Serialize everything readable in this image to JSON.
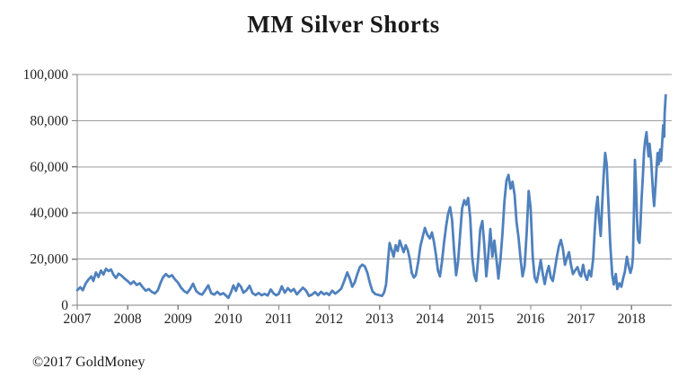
{
  "title": "MM Silver Shorts",
  "footer": {
    "copyright": "©2017 GoldMoney"
  },
  "colors": {
    "line": "#4F81BD",
    "gridline": "#9E9E9E",
    "axis": "#808080",
    "text": "#222222",
    "background": "#FFFFFF"
  },
  "chart_data": {
    "type": "line",
    "title": "MM Silver Shorts",
    "series_name": "MM Silver Shorts",
    "xlabel": "",
    "ylabel": "",
    "legend": "none",
    "grid": "horizontal",
    "xlim": [
      2007,
      2018.8
    ],
    "ylim": [
      0,
      100000
    ],
    "ytick_values": [
      0,
      20000,
      40000,
      60000,
      80000,
      100000
    ],
    "ytick_labels": [
      "0",
      "20,000",
      "40,000",
      "60,000",
      "80,000",
      "100,000"
    ],
    "xtick_values": [
      2007,
      2008,
      2009,
      2010,
      2011,
      2012,
      2013,
      2014,
      2015,
      2016,
      2017,
      2018
    ],
    "xtick_labels": [
      "2007",
      "2008",
      "2009",
      "2010",
      "2011",
      "2012",
      "2013",
      "2014",
      "2015",
      "2016",
      "2017",
      "2018"
    ],
    "line_color": "#4F81BD",
    "points": [
      [
        2007.0,
        6500
      ],
      [
        2007.06,
        7800
      ],
      [
        2007.11,
        6500
      ],
      [
        2007.17,
        9500
      ],
      [
        2007.22,
        11000
      ],
      [
        2007.28,
        12500
      ],
      [
        2007.32,
        10500
      ],
      [
        2007.37,
        14200
      ],
      [
        2007.42,
        12200
      ],
      [
        2007.47,
        15000
      ],
      [
        2007.52,
        13300
      ],
      [
        2007.57,
        15800
      ],
      [
        2007.62,
        14800
      ],
      [
        2007.67,
        15500
      ],
      [
        2007.72,
        13200
      ],
      [
        2007.77,
        11800
      ],
      [
        2007.82,
        13700
      ],
      [
        2007.88,
        12800
      ],
      [
        2007.94,
        11500
      ],
      [
        2008.0,
        10500
      ],
      [
        2008.06,
        9200
      ],
      [
        2008.12,
        10300
      ],
      [
        2008.18,
        8800
      ],
      [
        2008.24,
        9500
      ],
      [
        2008.3,
        7800
      ],
      [
        2008.36,
        6300
      ],
      [
        2008.42,
        7000
      ],
      [
        2008.48,
        5800
      ],
      [
        2008.54,
        5100
      ],
      [
        2008.6,
        6500
      ],
      [
        2008.65,
        9500
      ],
      [
        2008.7,
        12000
      ],
      [
        2008.76,
        13500
      ],
      [
        2008.82,
        12300
      ],
      [
        2008.88,
        13000
      ],
      [
        2008.94,
        11200
      ],
      [
        2009.0,
        9800
      ],
      [
        2009.06,
        7600
      ],
      [
        2009.12,
        6200
      ],
      [
        2009.18,
        5300
      ],
      [
        2009.24,
        7000
      ],
      [
        2009.3,
        9300
      ],
      [
        2009.36,
        6200
      ],
      [
        2009.42,
        5000
      ],
      [
        2009.48,
        4600
      ],
      [
        2009.54,
        6500
      ],
      [
        2009.6,
        8600
      ],
      [
        2009.66,
        5200
      ],
      [
        2009.72,
        4600
      ],
      [
        2009.78,
        5800
      ],
      [
        2009.84,
        4600
      ],
      [
        2009.9,
        5200
      ],
      [
        2009.95,
        4200
      ],
      [
        2010.0,
        3200
      ],
      [
        2010.05,
        5500
      ],
      [
        2010.1,
        8600
      ],
      [
        2010.15,
        6200
      ],
      [
        2010.2,
        9300
      ],
      [
        2010.25,
        8000
      ],
      [
        2010.3,
        5400
      ],
      [
        2010.36,
        6500
      ],
      [
        2010.42,
        8400
      ],
      [
        2010.48,
        5200
      ],
      [
        2010.54,
        4400
      ],
      [
        2010.6,
        5300
      ],
      [
        2010.66,
        4300
      ],
      [
        2010.72,
        4900
      ],
      [
        2010.78,
        4200
      ],
      [
        2010.84,
        6800
      ],
      [
        2010.9,
        5000
      ],
      [
        2010.95,
        4300
      ],
      [
        2011.0,
        4900
      ],
      [
        2011.06,
        8200
      ],
      [
        2011.12,
        5400
      ],
      [
        2011.18,
        7400
      ],
      [
        2011.24,
        6000
      ],
      [
        2011.3,
        7000
      ],
      [
        2011.36,
        4700
      ],
      [
        2011.42,
        6200
      ],
      [
        2011.48,
        7600
      ],
      [
        2011.54,
        6400
      ],
      [
        2011.6,
        4000
      ],
      [
        2011.66,
        4600
      ],
      [
        2011.72,
        5700
      ],
      [
        2011.78,
        4300
      ],
      [
        2011.84,
        5800
      ],
      [
        2011.9,
        4700
      ],
      [
        2011.95,
        5300
      ],
      [
        2012.0,
        4400
      ],
      [
        2012.06,
        6300
      ],
      [
        2012.12,
        5000
      ],
      [
        2012.18,
        6000
      ],
      [
        2012.24,
        7200
      ],
      [
        2012.3,
        10500
      ],
      [
        2012.36,
        14200
      ],
      [
        2012.41,
        11500
      ],
      [
        2012.46,
        8000
      ],
      [
        2012.51,
        10000
      ],
      [
        2012.56,
        13500
      ],
      [
        2012.61,
        16500
      ],
      [
        2012.66,
        17600
      ],
      [
        2012.71,
        16800
      ],
      [
        2012.76,
        14000
      ],
      [
        2012.81,
        9500
      ],
      [
        2012.86,
        6000
      ],
      [
        2012.92,
        4800
      ],
      [
        2013.0,
        4300
      ],
      [
        2013.05,
        4000
      ],
      [
        2013.09,
        5500
      ],
      [
        2013.13,
        9000
      ],
      [
        2013.16,
        17000
      ],
      [
        2013.2,
        27000
      ],
      [
        2013.24,
        24000
      ],
      [
        2013.28,
        21000
      ],
      [
        2013.32,
        26000
      ],
      [
        2013.36,
        23500
      ],
      [
        2013.4,
        28000
      ],
      [
        2013.44,
        25500
      ],
      [
        2013.48,
        23000
      ],
      [
        2013.52,
        26000
      ],
      [
        2013.56,
        24000
      ],
      [
        2013.6,
        20000
      ],
      [
        2013.64,
        14000
      ],
      [
        2013.68,
        12000
      ],
      [
        2013.72,
        13000
      ],
      [
        2013.77,
        19000
      ],
      [
        2013.81,
        25500
      ],
      [
        2013.86,
        30000
      ],
      [
        2013.9,
        33500
      ],
      [
        2013.95,
        30500
      ],
      [
        2014.0,
        29000
      ],
      [
        2014.04,
        31500
      ],
      [
        2014.08,
        27500
      ],
      [
        2014.12,
        22000
      ],
      [
        2014.16,
        15000
      ],
      [
        2014.2,
        12500
      ],
      [
        2014.24,
        19000
      ],
      [
        2014.28,
        27000
      ],
      [
        2014.32,
        34000
      ],
      [
        2014.36,
        39500
      ],
      [
        2014.4,
        42500
      ],
      [
        2014.44,
        37000
      ],
      [
        2014.48,
        24000
      ],
      [
        2014.52,
        13000
      ],
      [
        2014.56,
        19000
      ],
      [
        2014.6,
        31000
      ],
      [
        2014.64,
        42000
      ],
      [
        2014.68,
        45500
      ],
      [
        2014.72,
        43500
      ],
      [
        2014.76,
        46500
      ],
      [
        2014.8,
        38000
      ],
      [
        2014.84,
        21000
      ],
      [
        2014.88,
        13000
      ],
      [
        2014.92,
        10500
      ],
      [
        2014.96,
        21000
      ],
      [
        2015.0,
        33000
      ],
      [
        2015.04,
        36500
      ],
      [
        2015.08,
        26000
      ],
      [
        2015.12,
        12500
      ],
      [
        2015.16,
        22000
      ],
      [
        2015.2,
        33000
      ],
      [
        2015.24,
        21000
      ],
      [
        2015.28,
        28000
      ],
      [
        2015.32,
        20000
      ],
      [
        2015.36,
        11500
      ],
      [
        2015.4,
        20000
      ],
      [
        2015.44,
        31000
      ],
      [
        2015.48,
        45000
      ],
      [
        2015.52,
        54000
      ],
      [
        2015.56,
        56500
      ],
      [
        2015.6,
        50500
      ],
      [
        2015.64,
        53500
      ],
      [
        2015.68,
        48000
      ],
      [
        2015.72,
        36000
      ],
      [
        2015.76,
        29000
      ],
      [
        2015.8,
        20000
      ],
      [
        2015.84,
        12500
      ],
      [
        2015.88,
        17000
      ],
      [
        2015.92,
        31000
      ],
      [
        2015.96,
        49500
      ],
      [
        2016.0,
        42000
      ],
      [
        2016.04,
        21000
      ],
      [
        2016.08,
        12000
      ],
      [
        2016.12,
        10000
      ],
      [
        2016.16,
        14500
      ],
      [
        2016.2,
        19500
      ],
      [
        2016.24,
        13500
      ],
      [
        2016.28,
        9200
      ],
      [
        2016.32,
        14000
      ],
      [
        2016.36,
        17000
      ],
      [
        2016.4,
        12000
      ],
      [
        2016.44,
        10500
      ],
      [
        2016.48,
        15500
      ],
      [
        2016.52,
        21000
      ],
      [
        2016.56,
        25500
      ],
      [
        2016.6,
        28300
      ],
      [
        2016.64,
        24500
      ],
      [
        2016.68,
        17500
      ],
      [
        2016.72,
        20500
      ],
      [
        2016.76,
        23000
      ],
      [
        2016.8,
        17500
      ],
      [
        2016.84,
        13500
      ],
      [
        2016.88,
        15000
      ],
      [
        2016.93,
        16500
      ],
      [
        2016.97,
        13500
      ],
      [
        2017.0,
        12500
      ],
      [
        2017.04,
        17500
      ],
      [
        2017.08,
        13000
      ],
      [
        2017.12,
        11000
      ],
      [
        2017.16,
        15000
      ],
      [
        2017.2,
        12500
      ],
      [
        2017.24,
        20000
      ],
      [
        2017.27,
        32000
      ],
      [
        2017.3,
        42000
      ],
      [
        2017.33,
        47000
      ],
      [
        2017.36,
        37000
      ],
      [
        2017.39,
        30000
      ],
      [
        2017.42,
        44000
      ],
      [
        2017.45,
        57000
      ],
      [
        2017.48,
        66000
      ],
      [
        2017.51,
        61000
      ],
      [
        2017.54,
        46000
      ],
      [
        2017.58,
        26000
      ],
      [
        2017.62,
        13000
      ],
      [
        2017.65,
        9000
      ],
      [
        2017.69,
        13500
      ],
      [
        2017.72,
        7000
      ],
      [
        2017.76,
        9500
      ],
      [
        2017.8,
        8000
      ],
      [
        2017.84,
        12000
      ],
      [
        2017.87,
        14500
      ],
      [
        2017.91,
        21000
      ],
      [
        2017.95,
        16500
      ],
      [
        2017.98,
        14000
      ],
      [
        2018.01,
        16500
      ],
      [
        2018.03,
        21000
      ],
      [
        2018.05,
        40000
      ],
      [
        2018.07,
        63000
      ],
      [
        2018.09,
        52000
      ],
      [
        2018.11,
        38000
      ],
      [
        2018.13,
        28500
      ],
      [
        2018.16,
        27000
      ],
      [
        2018.18,
        35000
      ],
      [
        2018.2,
        45000
      ],
      [
        2018.23,
        57000
      ],
      [
        2018.25,
        66000
      ],
      [
        2018.27,
        71000
      ],
      [
        2018.3,
        75000
      ],
      [
        2018.32,
        69000
      ],
      [
        2018.34,
        64500
      ],
      [
        2018.36,
        70000
      ],
      [
        2018.39,
        63000
      ],
      [
        2018.41,
        56000
      ],
      [
        2018.43,
        48500
      ],
      [
        2018.45,
        43000
      ],
      [
        2018.48,
        52000
      ],
      [
        2018.5,
        60000
      ],
      [
        2018.52,
        66000
      ],
      [
        2018.54,
        61000
      ],
      [
        2018.57,
        67500
      ],
      [
        2018.59,
        62500
      ],
      [
        2018.61,
        70000
      ],
      [
        2018.63,
        78000
      ],
      [
        2018.65,
        73000
      ],
      [
        2018.66,
        83000
      ],
      [
        2018.68,
        91000
      ]
    ]
  }
}
